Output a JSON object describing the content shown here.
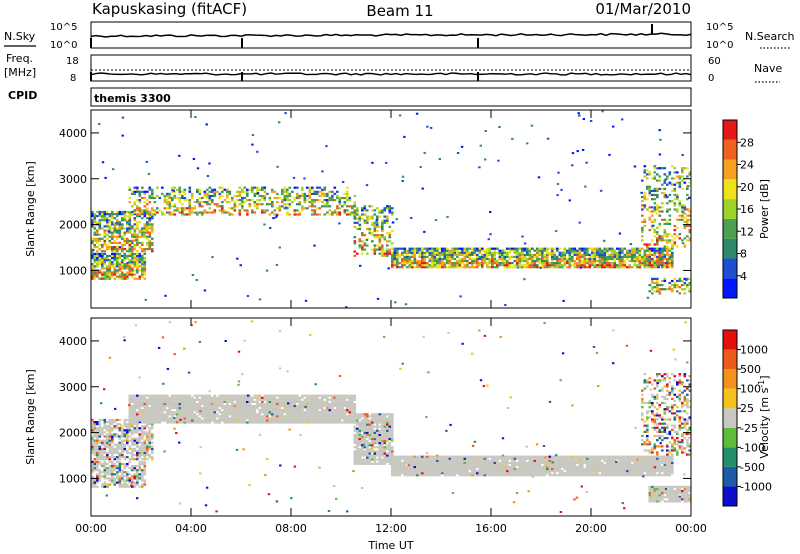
{
  "header": {
    "station": "Kapuskasing (fitACF)",
    "beam": "Beam 11",
    "date": "01/Mar/2010"
  },
  "status_panels": {
    "nsky_label": "N.Sky",
    "nsearch_label": "N.Search",
    "noise_ticks": [
      "10^5",
      "10^0"
    ],
    "freq_label_top": "Freq.",
    "freq_label_unit": "[MHz]",
    "freq_ticks": [
      "18",
      "8"
    ],
    "nave_label": "Nave",
    "nave_ticks": [
      "60",
      "0"
    ],
    "cpid_label": "CPID",
    "cpid_value": "themis 3300"
  },
  "colors": {
    "power_scale": [
      "#0016ff",
      "#1f4fd1",
      "#2f8a6a",
      "#4da050",
      "#9cd22a",
      "#f0e21a",
      "#f5a020",
      "#f06020",
      "#e41818"
    ],
    "velocity_scale": [
      "#0d0dcc",
      "#1f5aa8",
      "#238f6a",
      "#5cbd3c",
      "#c8c8c0",
      "#f4c21c",
      "#f2921c",
      "#ef5a18",
      "#e40f0f"
    ],
    "ground_scatter": "#c8c8c0"
  },
  "chart_data": [
    {
      "type": "heatmap",
      "name": "power",
      "ylabel": "Slant Range [km]",
      "ylim": [
        180,
        4500
      ],
      "yticks": [
        1000,
        2000,
        3000,
        4000
      ],
      "xlim": [
        0,
        24
      ],
      "colorbar_label": "Power [dB]",
      "colorbar_ticks": [
        "28",
        "24",
        "20",
        "16",
        "12",
        "8",
        "4"
      ],
      "colorbar_range": [
        0,
        30
      ],
      "bands": [
        {
          "t0": 0.0,
          "t1": 2.2,
          "r0": 800,
          "r1": 1350,
          "level": 0.8
        },
        {
          "t0": 0.0,
          "t1": 2.5,
          "r0": 1400,
          "r1": 2300,
          "level": 0.65
        },
        {
          "t0": 1.5,
          "t1": 10.5,
          "r0": 2200,
          "r1": 2800,
          "level": 0.45
        },
        {
          "t0": 10.5,
          "t1": 12.0,
          "r0": 1300,
          "r1": 2400,
          "level": 0.4
        },
        {
          "t0": 12.0,
          "t1": 23.3,
          "r0": 1050,
          "r1": 1500,
          "level": 0.85
        },
        {
          "t0": 22.3,
          "t1": 24.0,
          "r0": 480,
          "r1": 800,
          "level": 0.5
        },
        {
          "t0": 22.0,
          "t1": 24.0,
          "r0": 1500,
          "r1": 3300,
          "level": 0.3
        }
      ]
    },
    {
      "type": "heatmap",
      "name": "velocity",
      "ylabel": "Slant Range [km]",
      "ylim": [
        180,
        4500
      ],
      "yticks": [
        1000,
        2000,
        3000,
        4000
      ],
      "xlim": [
        0,
        24
      ],
      "xlabel": "Time UT",
      "xticks": [
        "00:00",
        "04:00",
        "08:00",
        "12:00",
        "16:00",
        "20:00",
        "00:00"
      ],
      "colorbar_label": "Velocity [m s",
      "colorbar_label_sup": "-1",
      "colorbar_label_end": "]",
      "colorbar_ticks": [
        "1000",
        "500",
        "100",
        "25",
        "-25",
        "-100",
        "-500",
        "-1000"
      ],
      "bands": [
        {
          "t0": 0.0,
          "t1": 2.2,
          "r0": 800,
          "r1": 1350,
          "ground": 0.7
        },
        {
          "t0": 0.0,
          "t1": 2.5,
          "r0": 1400,
          "r1": 2300,
          "ground": 0.75
        },
        {
          "t0": 1.5,
          "t1": 10.5,
          "r0": 2200,
          "r1": 2800,
          "ground": 0.95
        },
        {
          "t0": 10.5,
          "t1": 12.0,
          "r0": 1300,
          "r1": 2400,
          "ground": 0.9
        },
        {
          "t0": 12.0,
          "t1": 23.3,
          "r0": 1050,
          "r1": 1500,
          "ground": 0.97
        },
        {
          "t0": 22.3,
          "t1": 24.0,
          "r0": 480,
          "r1": 800,
          "ground": 0.9
        },
        {
          "t0": 22.0,
          "t1": 24.0,
          "r0": 1500,
          "r1": 3300,
          "ground": 0.3
        }
      ]
    }
  ]
}
